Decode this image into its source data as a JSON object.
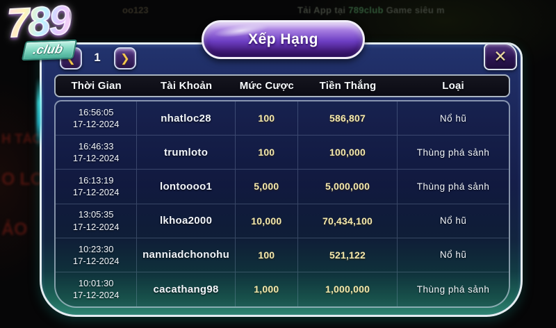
{
  "background": {
    "marquee_prefix": "Tải App tại ",
    "marquee_link": "789club",
    "marquee_suffix": " Game siêu m",
    "fragment_top": "oo123",
    "fragments_left": [
      "H TÁC",
      "O LO",
      "ẢO"
    ]
  },
  "logo": {
    "number": "789",
    "club": ".club"
  },
  "panel": {
    "title": "Xếp Hạng",
    "pagination": {
      "prev_icon": "❮",
      "page": "1",
      "next_icon": "❯"
    },
    "close_icon": "✕",
    "table": {
      "headers": [
        "Thời Gian",
        "Tài Khoản",
        "Mức Cược",
        "Tiền Thắng",
        "Loại"
      ],
      "rows": [
        {
          "time": "16:56:05",
          "date": "17-12-2024",
          "account": "nhatloc28",
          "bet": "100",
          "win": "586,807",
          "type": "Nổ hũ"
        },
        {
          "time": "16:46:33",
          "date": "17-12-2024",
          "account": "trumloto",
          "bet": "100",
          "win": "100,000",
          "type": "Thùng phá sảnh"
        },
        {
          "time": "16:13:19",
          "date": "17-12-2024",
          "account": "lontoooo1",
          "bet": "5,000",
          "win": "5,000,000",
          "type": "Thùng phá sảnh"
        },
        {
          "time": "13:05:35",
          "date": "17-12-2024",
          "account": "lkhoa2000",
          "bet": "10,000",
          "win": "70,434,100",
          "type": "Nổ hũ"
        },
        {
          "time": "10:23:30",
          "date": "17-12-2024",
          "account": "nanniadchonohu",
          "bet": "100",
          "win": "521,122",
          "type": "Nổ hũ"
        },
        {
          "time": "10:01:30",
          "date": "17-12-2024",
          "account": "cacathang98",
          "bet": "1,000",
          "win": "1,000,000",
          "type": "Thùng phá sảnh"
        }
      ]
    }
  },
  "colors": {
    "gold_text": "#f4e9ad",
    "panel_navy": "#1b2659",
    "panel_teal": "#2f8472",
    "banner_purple": "#6c3dc2",
    "button_gold": "#f3c84f",
    "glow_cyan": "#3fe8ea"
  }
}
